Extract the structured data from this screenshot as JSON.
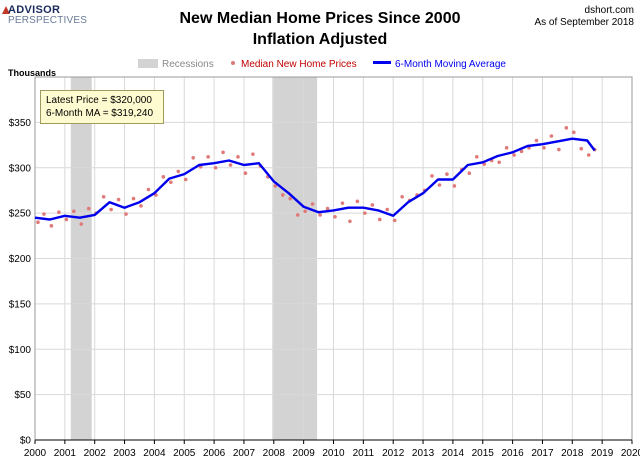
{
  "header": {
    "logo_line1": "ADVISOR",
    "logo_line2": "PERSPECTIVES",
    "source": "dshort.com",
    "as_of": "As of September 2018"
  },
  "callout": {
    "line1": "Latest Price = $320,000",
    "line2": "6-Month MA = $319,240"
  },
  "chart_data": {
    "type": "line",
    "title": "New Median Home Prices Since 2000",
    "subtitle": "Inflation Adjusted",
    "units_label": "Thousands",
    "xlim": [
      2000,
      2020
    ],
    "x_ticks": [
      "2000",
      "2001",
      "2002",
      "2003",
      "2004",
      "2005",
      "2006",
      "2007",
      "2008",
      "2009",
      "2010",
      "2011",
      "2012",
      "2013",
      "2014",
      "2015",
      "2016",
      "2017",
      "2018",
      "2019",
      "2020"
    ],
    "ylim": [
      0,
      400
    ],
    "y_ticks": [
      "$0",
      "$50",
      "$100",
      "$150",
      "$200",
      "$250",
      "$300",
      "$350"
    ],
    "grid": true,
    "legend_placement": "top-center",
    "recessions": [
      [
        2001.2,
        2001.9
      ],
      [
        2007.95,
        2009.45
      ]
    ],
    "legend": {
      "recessions": "Recessions",
      "median": "Median New Home Prices",
      "ma": "6-Month Moving Average"
    },
    "colors": {
      "recession": "#d3d3d3",
      "median": "#e07a7a",
      "ma": "#0000ee",
      "grid": "#d9d9d9"
    },
    "series": [
      {
        "name": "6-Month Moving Average",
        "kind": "line",
        "x": [
          2000.0,
          2000.5,
          2001.0,
          2001.5,
          2002.0,
          2002.5,
          2003.0,
          2003.5,
          2004.0,
          2004.5,
          2005.0,
          2005.5,
          2006.0,
          2006.5,
          2007.0,
          2007.5,
          2008.0,
          2008.5,
          2009.0,
          2009.5,
          2010.0,
          2010.5,
          2011.0,
          2011.5,
          2012.0,
          2012.5,
          2013.0,
          2013.5,
          2014.0,
          2014.5,
          2015.0,
          2015.5,
          2016.0,
          2016.5,
          2017.0,
          2017.5,
          2018.0,
          2018.5,
          2018.75
        ],
        "y": [
          245,
          243,
          247,
          245,
          248,
          262,
          256,
          262,
          272,
          288,
          293,
          303,
          305,
          308,
          303,
          305,
          285,
          272,
          257,
          251,
          253,
          256,
          256,
          253,
          247,
          262,
          272,
          287,
          287,
          303,
          306,
          313,
          317,
          324,
          326,
          329,
          332,
          330,
          319
        ]
      },
      {
        "name": "Median New Home Prices",
        "kind": "points",
        "x": [
          2000.1,
          2000.3,
          2000.55,
          2000.8,
          2001.05,
          2001.3,
          2001.55,
          2001.8,
          2002.05,
          2002.3,
          2002.55,
          2002.8,
          2003.05,
          2003.3,
          2003.55,
          2003.8,
          2004.05,
          2004.3,
          2004.55,
          2004.8,
          2005.05,
          2005.3,
          2005.55,
          2005.8,
          2006.05,
          2006.3,
          2006.55,
          2006.8,
          2007.05,
          2007.3,
          2007.55,
          2007.8,
          2008.05,
          2008.3,
          2008.55,
          2008.8,
          2009.05,
          2009.3,
          2009.55,
          2009.8,
          2010.05,
          2010.3,
          2010.55,
          2010.8,
          2011.05,
          2011.3,
          2011.55,
          2011.8,
          2012.05,
          2012.3,
          2012.55,
          2012.8,
          2013.05,
          2013.3,
          2013.55,
          2013.8,
          2014.05,
          2014.3,
          2014.55,
          2014.8,
          2015.05,
          2015.3,
          2015.55,
          2015.8,
          2016.05,
          2016.3,
          2016.55,
          2016.8,
          2017.05,
          2017.3,
          2017.55,
          2017.8,
          2018.05,
          2018.3,
          2018.55,
          2018.75
        ],
        "y": [
          240,
          249,
          236,
          251,
          243,
          252,
          238,
          255,
          250,
          268,
          254,
          265,
          249,
          266,
          258,
          276,
          270,
          290,
          284,
          296,
          287,
          311,
          301,
          312,
          300,
          317,
          303,
          312,
          294,
          315,
          302,
          290,
          280,
          270,
          266,
          248,
          252,
          260,
          248,
          255,
          246,
          261,
          241,
          263,
          250,
          259,
          243,
          254,
          242,
          268,
          264,
          270,
          275,
          291,
          281,
          293,
          280,
          298,
          294,
          312,
          304,
          308,
          306,
          322,
          314,
          318,
          322,
          330,
          322,
          335,
          320,
          344,
          339,
          321,
          314,
          320
        ]
      }
    ]
  }
}
